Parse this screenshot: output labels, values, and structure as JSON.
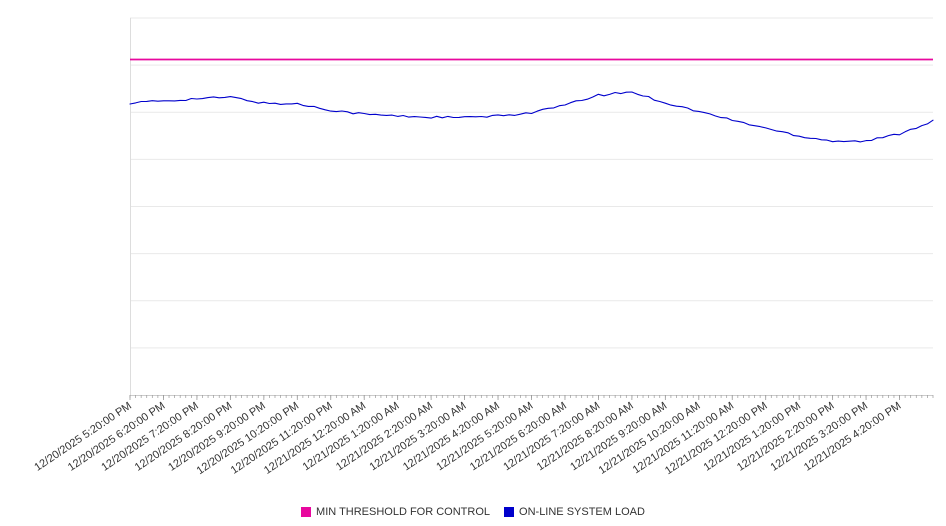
{
  "legend": {
    "items": [
      {
        "label": "MIN THRESHOLD FOR CONTROL",
        "color": "#e8089e"
      },
      {
        "label": "ON-LINE SYSTEM LOAD",
        "color": "#0000cc"
      }
    ]
  },
  "chart_data": {
    "type": "line",
    "title": "",
    "xlabel": "",
    "ylabel": "",
    "x_tick_labels": [
      "12/20/2025 5:20:00 PM",
      "12/20/2025 6:20:00 PM",
      "12/20/2025 7:20:00 PM",
      "12/20/2025 8:20:00 PM",
      "12/20/2025 9:20:00 PM",
      "12/20/2025 10:20:00 PM",
      "12/20/2025 11:20:00 PM",
      "12/21/2025 12:20:00 AM",
      "12/21/2025 1:20:00 AM",
      "12/21/2025 2:20:00 AM",
      "12/21/2025 3:20:00 AM",
      "12/21/2025 4:20:00 AM",
      "12/21/2025 5:20:00 AM",
      "12/21/2025 6:20:00 AM",
      "12/21/2025 7:20:00 AM",
      "12/21/2025 8:20:00 AM",
      "12/21/2025 9:20:00 AM",
      "12/21/2025 10:20:00 AM",
      "12/21/2025 11:20:00 AM",
      "12/21/2025 12:20:00 PM",
      "12/21/2025 1:20:00 PM",
      "12/21/2025 2:20:00 PM",
      "12/21/2025 3:20:00 PM",
      "12/21/2025 4:20:00 PM"
    ],
    "series": [
      {
        "name": "MIN THRESHOLD FOR CONTROL",
        "color": "#e8089e",
        "style": "threshold",
        "value": 89
      },
      {
        "name": "ON-LINE SYSTEM LOAD",
        "color": "#0000cc",
        "sample_interval_hours": 1,
        "values_hourly": [
          77.5,
          78.0,
          78.6,
          79.0,
          77.4,
          77.2,
          75.6,
          74.5,
          74.0,
          73.7,
          73.6,
          74.0,
          74.9,
          76.9,
          79.5,
          80.4,
          77.5,
          75.2,
          72.9,
          70.8,
          68.7,
          67.4,
          67.3,
          69.3,
          72.7
        ]
      }
    ],
    "ylim": [
      0,
      100
    ],
    "y_gridline_step": 12.5,
    "grid": true,
    "legend_position": "bottom"
  }
}
